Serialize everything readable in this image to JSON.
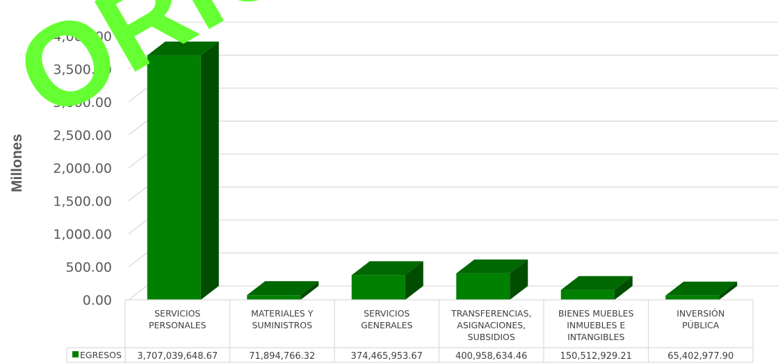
{
  "chart_data": {
    "type": "bar",
    "categories": [
      [
        "SERVICIOS",
        "PERSONALES"
      ],
      [
        "MATERIALES Y",
        "SUMINISTROS"
      ],
      [
        "SERVICIOS",
        "GENERALES"
      ],
      [
        "TRANSFERENCIAS,",
        "ASIGNACIONES,",
        "SUBSIDIOS"
      ],
      [
        "BIENES MUEBLES",
        "INMUEBLES E",
        "INTANGIBLES"
      ],
      [
        "INVERSIÓN",
        "PÚBLICA"
      ]
    ],
    "series": [
      {
        "name": "EGRESOS",
        "values": [
          3707039648.67,
          71894766.32,
          374465953.67,
          400958634.46,
          150512929.21,
          65402977.9
        ],
        "labels": [
          "3,707,039,648.67",
          "71,894,766.32",
          "374,465,953.67",
          "400,958,634.46",
          "150,512,929.21",
          "65,402,977.90"
        ]
      }
    ],
    "ylabel": "Millones",
    "yticks": [
      "0.00",
      "500.00",
      "1,000.00",
      "1,500.00",
      "2,000.00",
      "2,500.00",
      "3,000.00",
      "3,500.00",
      "4,000.00"
    ],
    "ylim": [
      0,
      4000
    ],
    "y_unit_divisor": 1000000,
    "grid": true,
    "three_d": true,
    "data_table": true,
    "colors": {
      "bar_front": "#008000",
      "bar_top": "#006800",
      "bar_side": "#004d00",
      "legend_swatch": "#008000",
      "grid": "#d9d9d9"
    }
  },
  "watermark": {
    "text": "ORIGINAL",
    "color": "#66ff33"
  }
}
